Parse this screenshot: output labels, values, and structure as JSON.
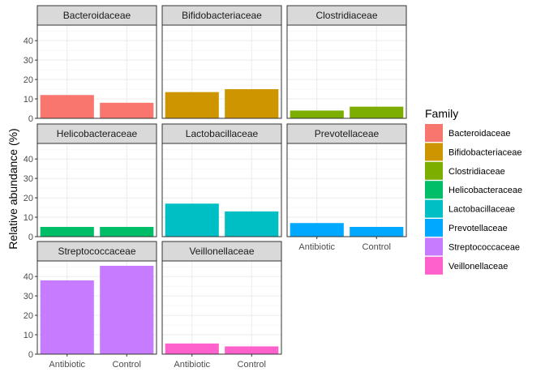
{
  "chart_data": {
    "type": "bar",
    "facet_by": "Family",
    "ylabel": "Relative abundance (%)",
    "xlabel": "",
    "categories": [
      "Antibiotic",
      "Control"
    ],
    "y_ticks": [
      0,
      10,
      20,
      30,
      40
    ],
    "ylim": [
      0,
      48
    ],
    "grid": true,
    "legend": {
      "title": "Family",
      "placement": "right",
      "entries": [
        {
          "name": "Bacteroidaceae",
          "color": "#F8766D"
        },
        {
          "name": "Bifidobacteriaceae",
          "color": "#CD9600"
        },
        {
          "name": "Clostridiaceae",
          "color": "#7CAE00"
        },
        {
          "name": "Helicobacteraceae",
          "color": "#00BE67"
        },
        {
          "name": "Lactobacillaceae",
          "color": "#00BFC4"
        },
        {
          "name": "Prevotellaceae",
          "color": "#00A9FF"
        },
        {
          "name": "Streptococcaceae",
          "color": "#C77CFF"
        },
        {
          "name": "Veillonellaceae",
          "color": "#FF61CC"
        }
      ]
    },
    "facets": [
      {
        "name": "Bacteroidaceae",
        "values": [
          12,
          8
        ]
      },
      {
        "name": "Bifidobacteriaceae",
        "values": [
          13.5,
          15
        ]
      },
      {
        "name": "Clostridiaceae",
        "values": [
          4,
          6
        ]
      },
      {
        "name": "Helicobacteraceae",
        "values": [
          5,
          5
        ]
      },
      {
        "name": "Lactobacillaceae",
        "values": [
          17,
          13
        ]
      },
      {
        "name": "Prevotellaceae",
        "values": [
          7,
          5
        ]
      },
      {
        "name": "Streptococcaceae",
        "values": [
          38,
          45.5
        ]
      },
      {
        "name": "Veillonellaceae",
        "values": [
          5.5,
          4
        ]
      }
    ]
  }
}
